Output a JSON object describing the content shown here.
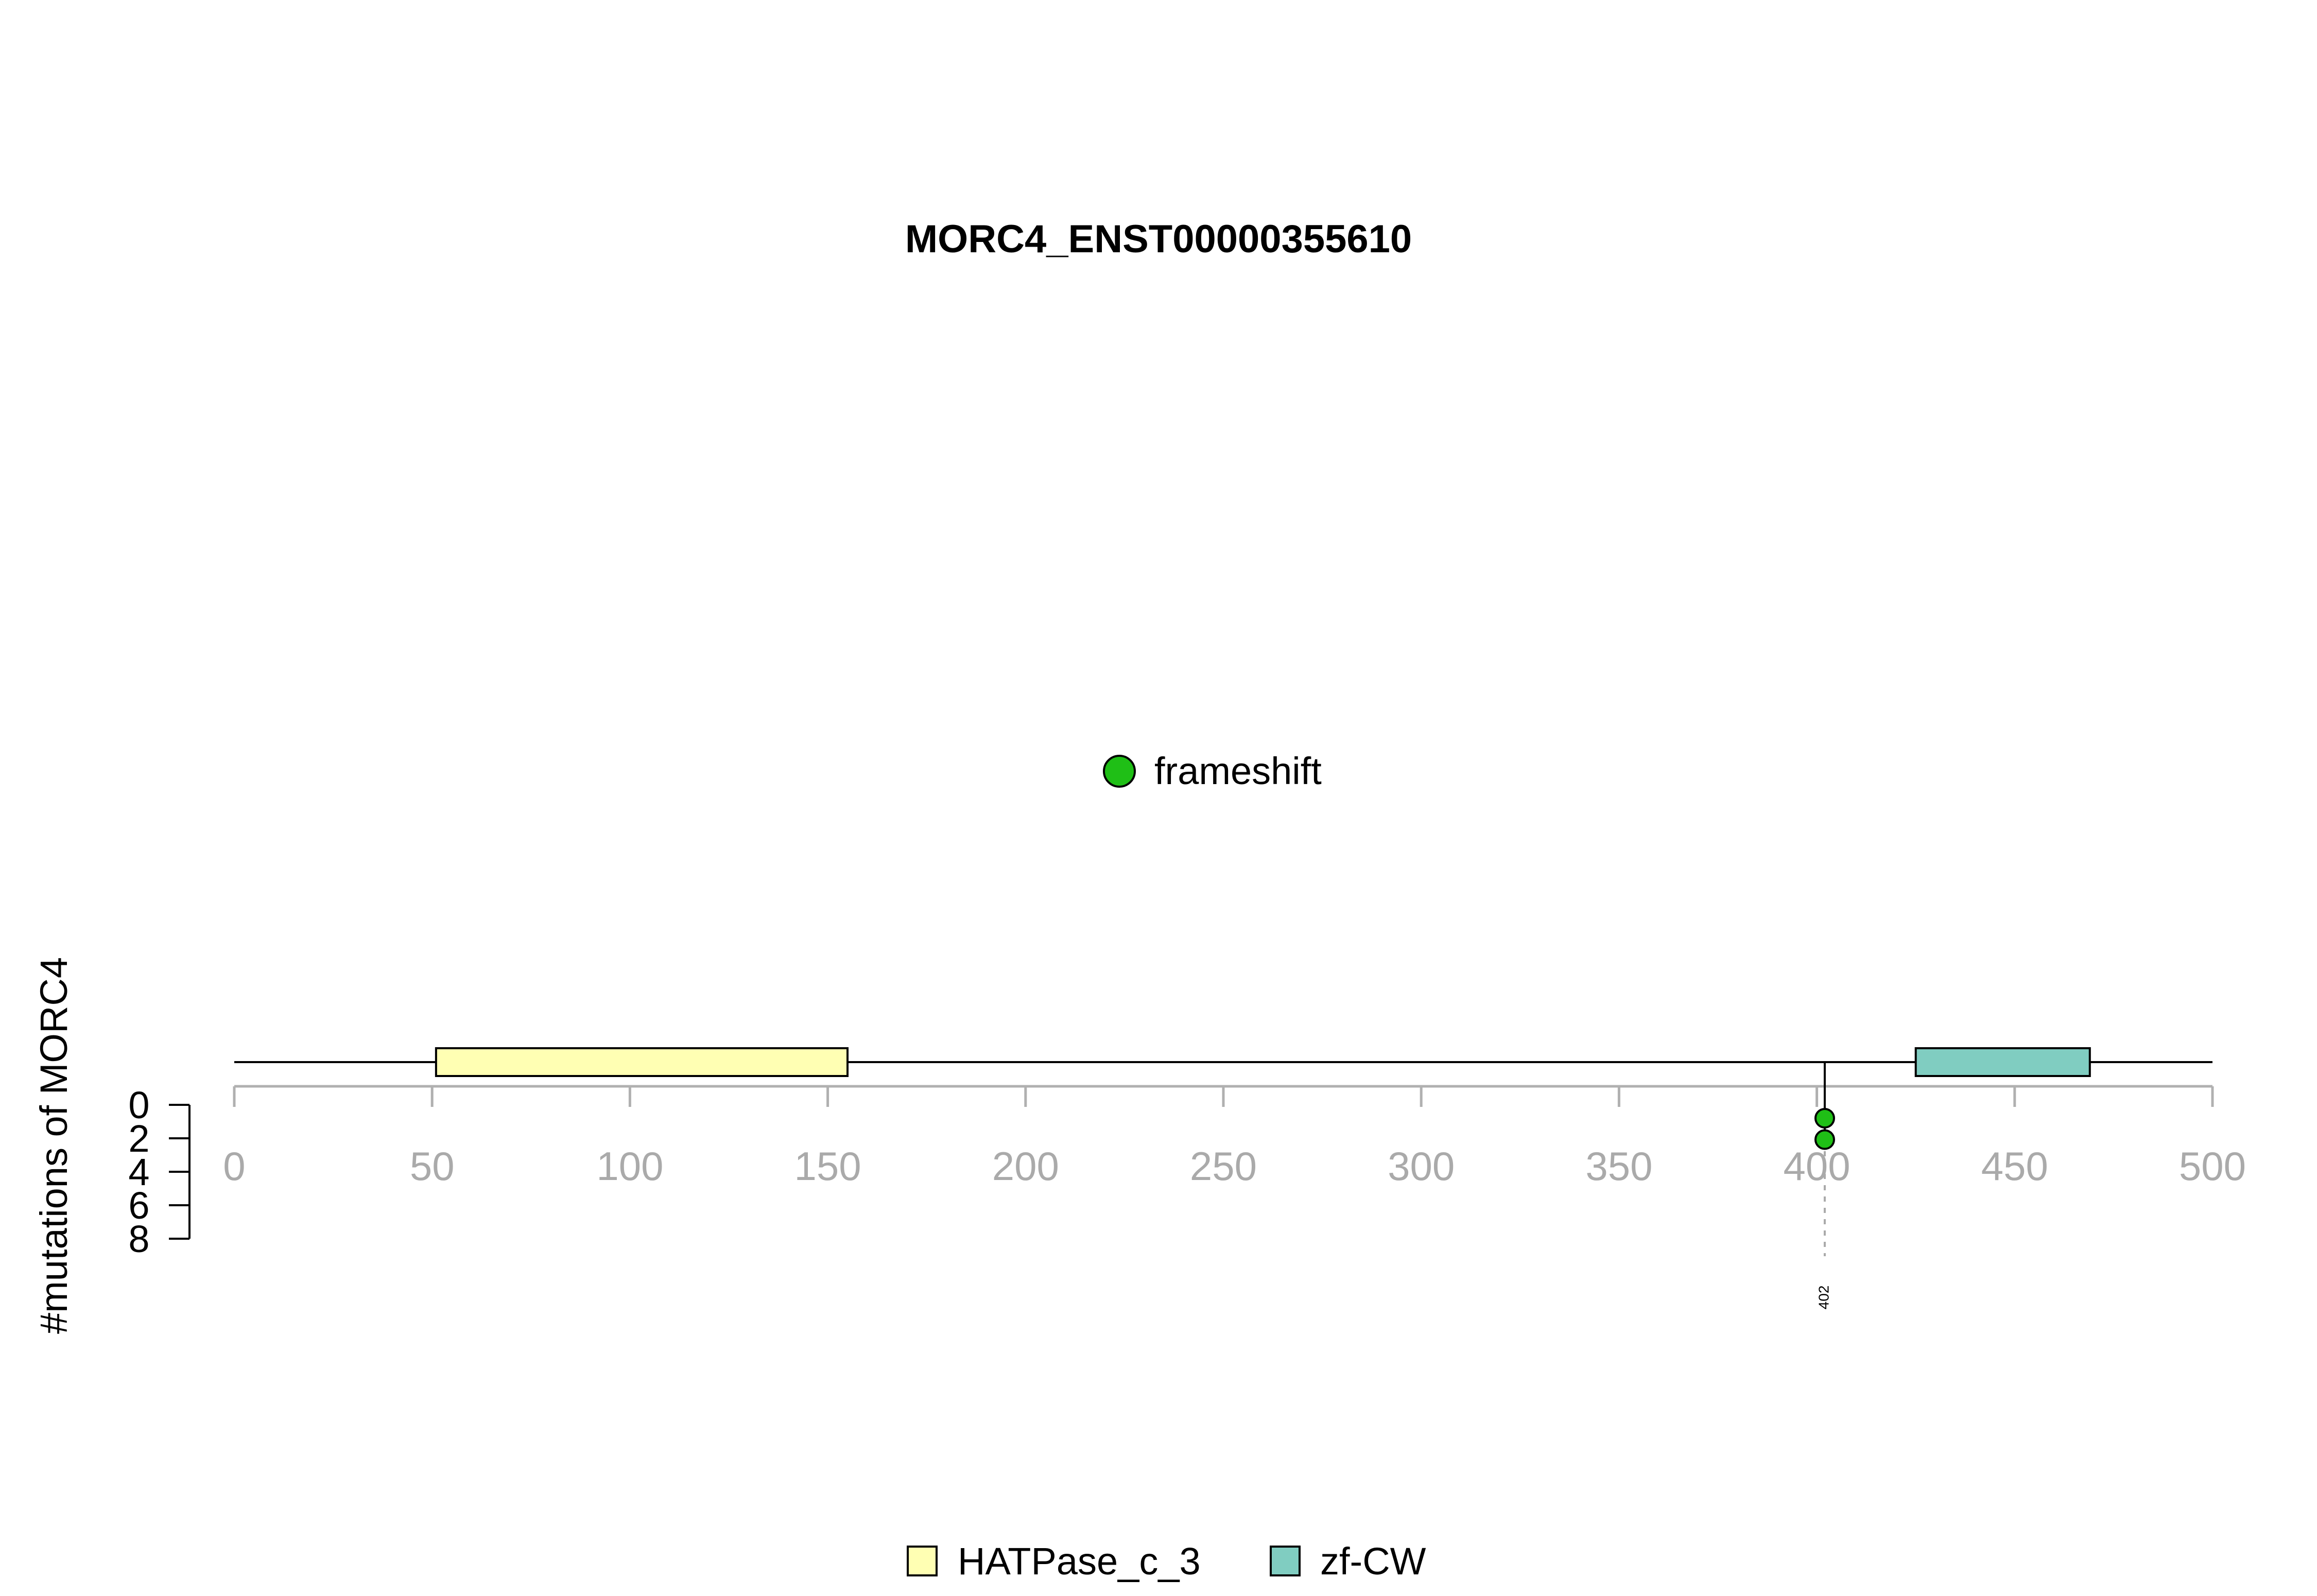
{
  "chart_data": {
    "type": "lollipop",
    "title": "MORC4_ENST00000355610",
    "ylabel": "#mutations of MORC4",
    "xlim": [
      0,
      500
    ],
    "x_ticks": [
      0,
      50,
      100,
      150,
      200,
      250,
      300,
      350,
      400,
      450,
      500
    ],
    "y_ticks": [
      0,
      2,
      4,
      6,
      8
    ],
    "ylim": [
      0,
      8
    ],
    "protein_length": 500,
    "domains": [
      {
        "name": "HATPase_c_3",
        "start": 51,
        "end": 155,
        "color": "#FFFFB3"
      },
      {
        "name": "zf-CW",
        "start": 425,
        "end": 469,
        "color": "#80CDC1"
      }
    ],
    "mutations": [
      {
        "position": 402,
        "count": 2,
        "type": "frameshift",
        "label": "402"
      }
    ],
    "mutation_legend": [
      {
        "label": "frameshift",
        "color": "#1FBF16"
      }
    ],
    "domain_legend": [
      {
        "label": "HATPase_c_3",
        "color": "#FFFFB3"
      },
      {
        "label": "zf-CW",
        "color": "#80CDC1"
      }
    ],
    "grid": false
  }
}
